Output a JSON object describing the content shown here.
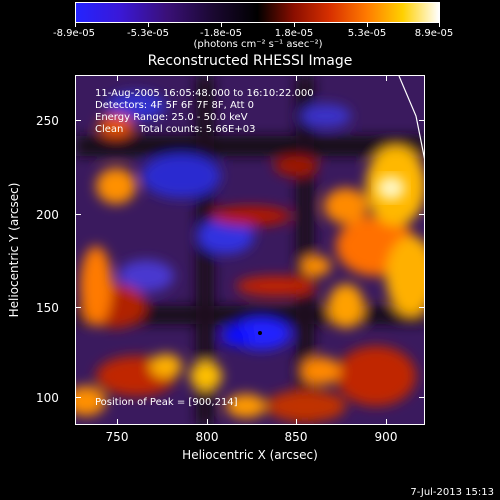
{
  "colorbar": {
    "tick_labels": [
      "-8.9e-05",
      "-5.3e-05",
      "-1.8e-05",
      "1.8e-05",
      "5.3e-05",
      "8.9e-05"
    ],
    "units": "(photons cm⁻² s⁻¹ asec⁻²)",
    "colors": [
      "#2020ff",
      "#4010c0",
      "#200838",
      "#000000",
      "#a01000",
      "#ff6000",
      "#ffd000",
      "#ffffff"
    ]
  },
  "title": "Reconstructed RHESSI Image",
  "info": {
    "time_range": "11-Aug-2005 16:05:48.000 to 16:10:22.000",
    "detectors": "Detectors: 4F 5F 6F 7F 8F, Att 0",
    "energy": "Energy Range: 25.0 - 50.0 keV",
    "method": "Clean     Total counts: 5.66E+03",
    "peak": "Position of Peak = [900,214]"
  },
  "axes": {
    "xlabel": "Heliocentric X (arcsec)",
    "ylabel": "Heliocentric Y (arcsec)",
    "xticks": [
      "750",
      "800",
      "850",
      "900"
    ],
    "yticks": [
      "250",
      "200",
      "150",
      "100"
    ]
  },
  "footer": "7-Jul-2013 15:13"
}
